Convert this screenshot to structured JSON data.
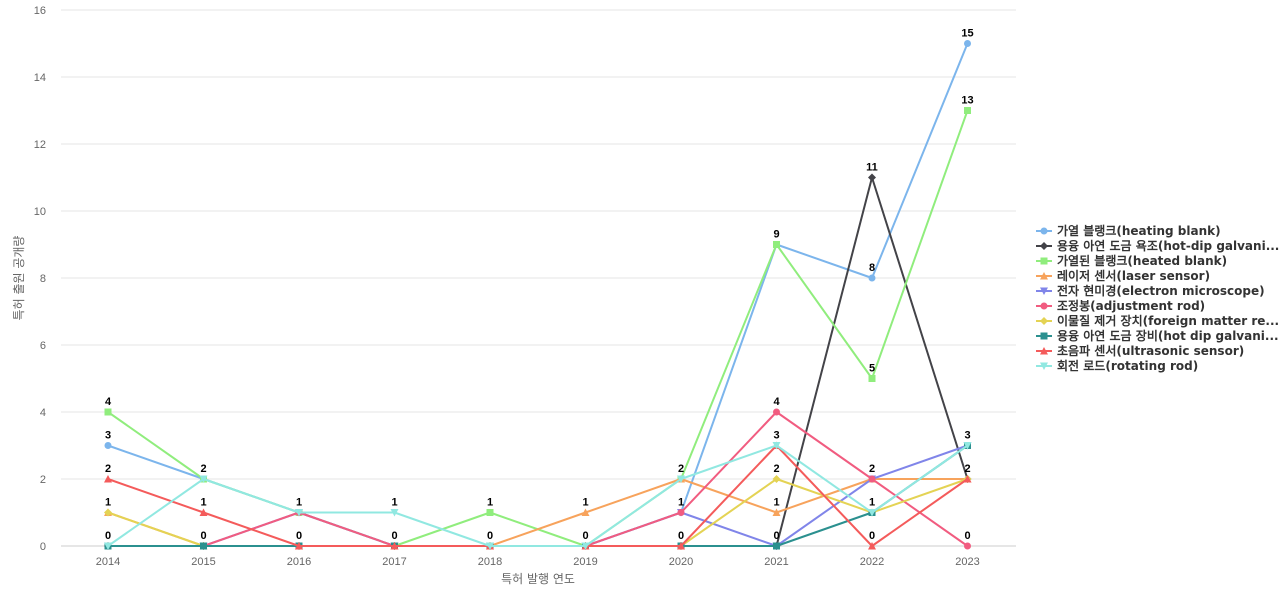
{
  "chart_data": {
    "type": "line",
    "xlabel": "특허 발행 연도",
    "ylabel": "특허 출원 공개량",
    "ylim": [
      0,
      16
    ],
    "yticks": [
      0,
      2,
      4,
      6,
      8,
      10,
      12,
      14,
      16
    ],
    "grid": true,
    "legend_position": "right",
    "x": [
      "2014",
      "2015",
      "2016",
      "2017",
      "2018",
      "2019",
      "2020",
      "2021",
      "2022",
      "2023"
    ],
    "series": [
      {
        "name": "가열 블랭크(heating blank)",
        "color": "#7cb5ec",
        "marker": "circle",
        "values": [
          3,
          2,
          1,
          0,
          0,
          0,
          1,
          9,
          8,
          15
        ]
      },
      {
        "name": "용융 아연 도금 욕조(hot-dip galvani...",
        "color": "#434348",
        "marker": "diamond",
        "values": [
          0,
          0,
          0,
          0,
          0,
          0,
          0,
          0,
          11,
          2
        ]
      },
      {
        "name": "가열된 블랭크(heated blank)",
        "color": "#90ed7d",
        "marker": "square",
        "values": [
          4,
          2,
          1,
          0,
          1,
          0,
          2,
          9,
          5,
          13
        ]
      },
      {
        "name": "레이저 센서(laser sensor)",
        "color": "#f7a35c",
        "marker": "triangle",
        "values": [
          1,
          0,
          0,
          0,
          0,
          1,
          2,
          1,
          2,
          2
        ]
      },
      {
        "name": "전자 현미경(electron microscope)",
        "color": "#8085e9",
        "marker": "triangle-down",
        "values": [
          0,
          0,
          1,
          0,
          0,
          0,
          1,
          0,
          2,
          3
        ]
      },
      {
        "name": "조정봉(adjustment rod)",
        "color": "#f15c80",
        "marker": "circle",
        "values": [
          0,
          0,
          1,
          0,
          0,
          0,
          1,
          4,
          2,
          0
        ]
      },
      {
        "name": "이물질 제거 장치(foreign matter re...",
        "color": "#e4d354",
        "marker": "diamond",
        "values": [
          1,
          0,
          0,
          0,
          0,
          0,
          0,
          2,
          1,
          2
        ]
      },
      {
        "name": "용융 아연 도금 장비(hot dip galvani...",
        "color": "#2b908f",
        "marker": "square",
        "values": [
          0,
          0,
          0,
          0,
          0,
          0,
          0,
          0,
          1,
          3
        ]
      },
      {
        "name": "초음파 센서(ultrasonic sensor)",
        "color": "#f45b5b",
        "marker": "triangle",
        "values": [
          2,
          1,
          0,
          0,
          0,
          0,
          0,
          3,
          0,
          2
        ]
      },
      {
        "name": "회전 로드(rotating rod)",
        "color": "#91e8e1",
        "marker": "triangle-down",
        "values": [
          0,
          2,
          1,
          1,
          0,
          0,
          2,
          3,
          1,
          3
        ]
      }
    ],
    "data_labels": [
      {
        "x": "2014",
        "value": 4,
        "text": "4"
      },
      {
        "x": "2014",
        "value": 3,
        "text": "3"
      },
      {
        "x": "2014",
        "value": 2,
        "text": "2"
      },
      {
        "x": "2014",
        "value": 1,
        "text": "1"
      },
      {
        "x": "2014",
        "value": 0,
        "text": "0"
      },
      {
        "x": "2015",
        "value": 2,
        "text": "2"
      },
      {
        "x": "2015",
        "value": 1,
        "text": "1"
      },
      {
        "x": "2015",
        "value": 0,
        "text": "0"
      },
      {
        "x": "2016",
        "value": 1,
        "text": "1"
      },
      {
        "x": "2016",
        "value": 0,
        "text": "0"
      },
      {
        "x": "2017",
        "value": 1,
        "text": "1"
      },
      {
        "x": "2017",
        "value": 0,
        "text": "0"
      },
      {
        "x": "2018",
        "value": 1,
        "text": "1"
      },
      {
        "x": "2018",
        "value": 0,
        "text": "0"
      },
      {
        "x": "2019",
        "value": 1,
        "text": "1"
      },
      {
        "x": "2019",
        "value": 0,
        "text": "0"
      },
      {
        "x": "2020",
        "value": 2,
        "text": "2"
      },
      {
        "x": "2020",
        "value": 1,
        "text": "1"
      },
      {
        "x": "2020",
        "value": 0,
        "text": "0"
      },
      {
        "x": "2021",
        "value": 9,
        "text": "9"
      },
      {
        "x": "2021",
        "value": 4,
        "text": "4"
      },
      {
        "x": "2021",
        "value": 3,
        "text": "3"
      },
      {
        "x": "2021",
        "value": 2,
        "text": "2"
      },
      {
        "x": "2021",
        "value": 1,
        "text": "1"
      },
      {
        "x": "2021",
        "value": 0,
        "text": "0"
      },
      {
        "x": "2022",
        "value": 11,
        "text": "11"
      },
      {
        "x": "2022",
        "value": 8,
        "text": "8"
      },
      {
        "x": "2022",
        "value": 5,
        "text": "5"
      },
      {
        "x": "2022",
        "value": 2,
        "text": "2"
      },
      {
        "x": "2022",
        "value": 1,
        "text": "1"
      },
      {
        "x": "2022",
        "value": 0,
        "text": "0"
      },
      {
        "x": "2023",
        "value": 15,
        "text": "15"
      },
      {
        "x": "2023",
        "value": 13,
        "text": "13"
      },
      {
        "x": "2023",
        "value": 3,
        "text": "3"
      },
      {
        "x": "2023",
        "value": 2,
        "text": "2"
      },
      {
        "x": "2023",
        "value": 0,
        "text": "0"
      }
    ]
  }
}
